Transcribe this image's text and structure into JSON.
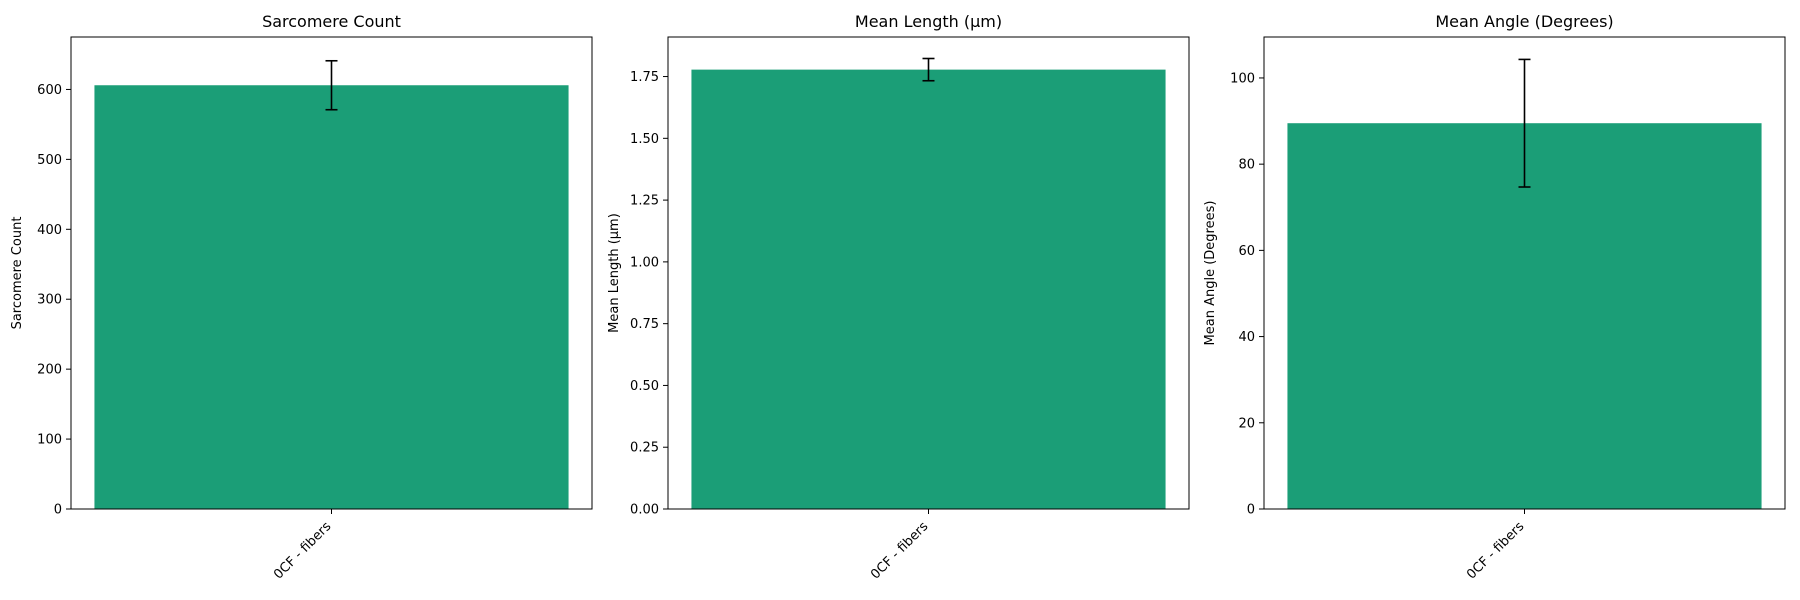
{
  "colors": {
    "bar": "#1b9e77",
    "error_bar": "#000000",
    "axis": "#000000",
    "background": "#ffffff"
  },
  "chart_data": [
    {
      "type": "bar",
      "title": "Sarcomere Count",
      "xlabel": "",
      "ylabel": "Sarcomere Count",
      "categories": [
        "0CF - fibers"
      ],
      "values": [
        606
      ],
      "errors": [
        35
      ],
      "ylim": [
        0,
        675
      ],
      "yticks": [
        0,
        100,
        200,
        300,
        400,
        500,
        600
      ],
      "ytick_labels": [
        "0",
        "100",
        "200",
        "300",
        "400",
        "500",
        "600"
      ],
      "grid": false
    },
    {
      "type": "bar",
      "title": "Mean Length (μm)",
      "xlabel": "",
      "ylabel": "Mean Length (μm)",
      "categories": [
        "0CF - fibers"
      ],
      "values": [
        1.778
      ],
      "errors": [
        0.045
      ],
      "ylim": [
        0,
        1.91
      ],
      "yticks": [
        0,
        0.25,
        0.5,
        0.75,
        1.0,
        1.25,
        1.5,
        1.75
      ],
      "ytick_labels": [
        "0.00",
        "0.25",
        "0.50",
        "0.75",
        "1.00",
        "1.25",
        "1.50",
        "1.75"
      ],
      "grid": false
    },
    {
      "type": "bar",
      "title": "Mean Angle (Degrees)",
      "xlabel": "",
      "ylabel": "Mean Angle (Degrees)",
      "categories": [
        "0CF - fibers"
      ],
      "values": [
        89.5
      ],
      "errors": [
        14.8
      ],
      "ylim": [
        0,
        109.5
      ],
      "yticks": [
        0,
        20,
        40,
        60,
        80,
        100
      ],
      "ytick_labels": [
        "0",
        "20",
        "40",
        "60",
        "80",
        "100"
      ],
      "grid": false
    }
  ]
}
